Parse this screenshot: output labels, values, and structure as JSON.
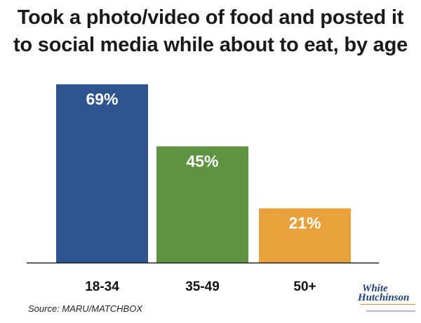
{
  "title_lines": [
    "Took a photo/video of food and posted it",
    "to social media while about to eat, by age"
  ],
  "source": "Source: MARU/MATCHBOX",
  "logo": {
    "line1": "White",
    "line2": "Hutchinson"
  },
  "colors": {
    "bar1": "#2f5590",
    "bar2": "#5e9441",
    "bar3": "#e9a13b",
    "axis": "#222222"
  },
  "chart_data": {
    "type": "bar",
    "categories": [
      "18-34",
      "35-49",
      "50+"
    ],
    "values": [
      69,
      45,
      21
    ],
    "value_labels": [
      "69%",
      "45%",
      "21%"
    ],
    "title": "Took a photo/video of food and posted it to social media while about to eat, by age",
    "xlabel": "",
    "ylabel": "",
    "ylim": [
      0,
      100
    ],
    "grid": false,
    "legend": "none"
  }
}
